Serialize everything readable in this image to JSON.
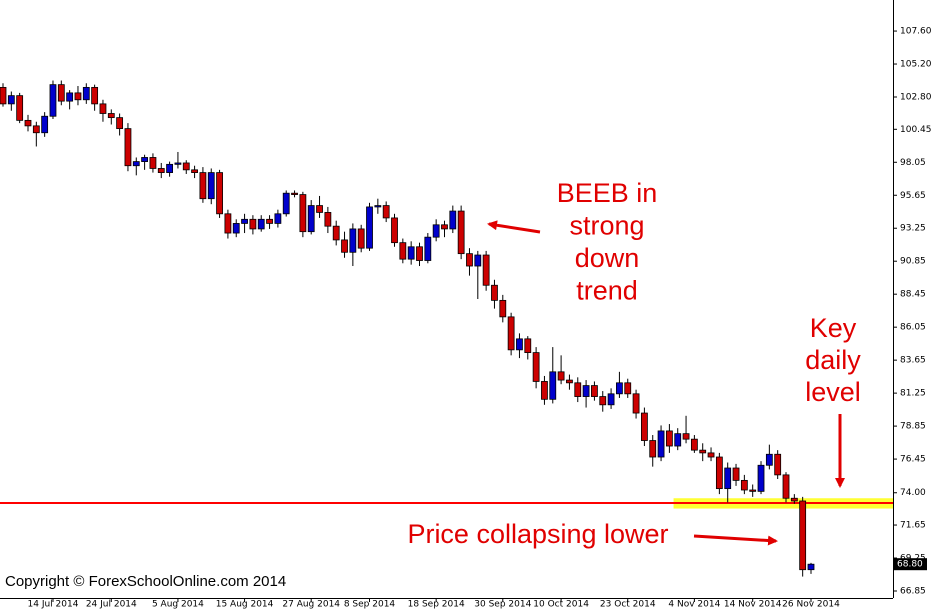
{
  "chart_data": {
    "type": "candlestick",
    "categories": [
      null,
      null,
      null,
      null,
      null,
      null,
      "14 Jul 2014",
      null,
      null,
      null,
      null,
      null,
      null,
      "24 Jul 2014",
      null,
      null,
      null,
      null,
      null,
      null,
      null,
      "5 Aug 2014",
      null,
      null,
      null,
      null,
      null,
      null,
      null,
      "15 Aug 2014",
      null,
      null,
      null,
      null,
      null,
      null,
      null,
      "27 Aug 2014",
      null,
      null,
      null,
      null,
      null,
      null,
      "8 Sep 2014",
      null,
      null,
      null,
      null,
      null,
      null,
      null,
      "18 Sep 2014",
      null,
      null,
      null,
      null,
      null,
      null,
      null,
      "30 Sep 2014",
      null,
      null,
      null,
      null,
      null,
      null,
      "10 Oct 2014",
      null,
      null,
      null,
      null,
      null,
      null,
      null,
      "23 Oct 2014",
      null,
      null,
      null,
      null,
      null,
      null,
      null,
      "4 Nov 2014",
      null,
      null,
      null,
      null,
      null,
      null,
      "14 Nov 2014",
      null,
      null,
      null,
      null,
      null,
      null,
      "26 Nov 2014"
    ],
    "open": [
      103.5,
      102.3,
      102.9,
      101.1,
      100.7,
      100.2,
      101.4,
      103.7,
      102.5,
      103.1,
      102.6,
      103.5,
      102.3,
      101.6,
      101.3,
      100.5,
      97.8,
      98.1,
      98.4,
      97.6,
      97.3,
      97.9,
      98.0,
      97.5,
      97.3,
      95.4,
      97.3,
      94.3,
      92.9,
      93.6,
      93.9,
      93.2,
      93.9,
      93.6,
      94.3,
      95.8,
      95.7,
      93.0,
      94.9,
      94.4,
      93.4,
      92.4,
      91.5,
      93.2,
      91.8,
      94.8,
      94.9,
      94.0,
      92.2,
      91.0,
      91.9,
      90.9,
      92.6,
      93.5,
      93.2,
      94.5,
      91.4,
      90.5,
      91.3,
      89.1,
      88.0,
      86.8,
      84.4,
      85.2,
      84.2,
      82.1,
      80.8,
      82.8,
      82.2,
      82.0,
      81.0,
      81.8,
      81.0,
      80.4,
      81.2,
      82.0,
      81.2,
      79.8,
      77.8,
      76.6,
      78.5,
      77.4,
      78.3,
      77.9,
      77.1,
      76.9,
      76.6,
      74.3,
      75.8,
      74.9,
      74.2,
      74.1,
      76.0,
      76.8,
      75.3,
      73.6,
      73.4,
      68.4
    ],
    "high": [
      103.8,
      103.2,
      103.1,
      101.5,
      101.0,
      101.7,
      104.0,
      104.0,
      103.3,
      103.6,
      103.8,
      103.7,
      102.6,
      101.9,
      101.6,
      100.9,
      98.4,
      98.6,
      98.7,
      98.0,
      98.1,
      98.8,
      98.2,
      97.8,
      97.7,
      97.6,
      97.5,
      94.6,
      93.9,
      94.3,
      94.2,
      94.2,
      94.2,
      94.6,
      96.0,
      96.0,
      95.9,
      95.3,
      95.6,
      94.8,
      93.8,
      93.0,
      93.6,
      93.5,
      95.1,
      95.4,
      95.2,
      94.3,
      92.5,
      92.3,
      92.2,
      92.9,
      93.9,
      93.8,
      94.9,
      94.9,
      91.8,
      91.6,
      91.6,
      89.5,
      88.4,
      87.1,
      85.6,
      85.4,
      84.6,
      82.5,
      84.6,
      84.0,
      82.6,
      82.4,
      82.2,
      82.1,
      81.4,
      81.6,
      82.8,
      82.3,
      81.5,
      80.2,
      78.2,
      78.9,
      79.0,
      78.7,
      79.6,
      78.2,
      77.6,
      77.3,
      76.9,
      76.2,
      76.1,
      75.3,
      74.6,
      76.3,
      77.5,
      77.1,
      75.5,
      73.9,
      73.7,
      68.9
    ],
    "low": [
      102.1,
      101.8,
      100.9,
      100.3,
      99.2,
      99.9,
      101.2,
      102.2,
      101.9,
      102.2,
      102.3,
      101.8,
      101.0,
      100.8,
      100.0,
      97.4,
      97.1,
      97.5,
      97.3,
      96.9,
      97.0,
      97.6,
      97.2,
      96.9,
      95.1,
      95.0,
      94.0,
      92.5,
      92.6,
      92.9,
      92.8,
      93.0,
      93.2,
      93.3,
      94.1,
      95.5,
      92.6,
      92.8,
      94.0,
      92.9,
      92.0,
      91.1,
      90.5,
      91.5,
      91.6,
      94.3,
      93.7,
      91.9,
      90.7,
      90.6,
      90.5,
      90.7,
      92.3,
      92.6,
      92.9,
      91.0,
      89.8,
      88.1,
      88.7,
      87.4,
      86.4,
      84.0,
      83.8,
      83.7,
      81.6,
      80.4,
      80.5,
      81.9,
      81.5,
      80.6,
      80.2,
      80.7,
      79.9,
      80.1,
      80.9,
      80.9,
      79.4,
      77.4,
      75.9,
      76.3,
      76.9,
      77.1,
      77.6,
      76.9,
      76.3,
      76.3,
      73.9,
      73.3,
      74.5,
      73.9,
      73.7,
      73.9,
      75.7,
      75.0,
      73.3,
      73.2,
      67.9,
      68.1
    ],
    "close": [
      102.3,
      102.9,
      101.1,
      100.7,
      100.2,
      101.4,
      103.7,
      102.5,
      103.1,
      102.6,
      103.5,
      102.3,
      101.6,
      101.3,
      100.5,
      97.8,
      98.1,
      98.4,
      97.6,
      97.3,
      97.9,
      98.0,
      97.5,
      97.3,
      95.4,
      97.3,
      94.3,
      92.9,
      93.6,
      93.9,
      93.2,
      93.9,
      93.6,
      94.3,
      95.8,
      95.7,
      93.0,
      94.9,
      94.4,
      93.4,
      92.4,
      91.5,
      93.2,
      91.8,
      94.8,
      94.9,
      94.0,
      92.2,
      91.0,
      91.9,
      90.9,
      92.6,
      93.5,
      93.2,
      94.5,
      91.4,
      90.5,
      91.3,
      89.1,
      88.0,
      86.8,
      84.4,
      85.2,
      84.2,
      82.1,
      80.8,
      82.8,
      82.2,
      82.0,
      81.0,
      81.8,
      81.0,
      80.4,
      81.2,
      82.0,
      81.2,
      79.8,
      77.8,
      76.6,
      78.5,
      77.4,
      78.3,
      77.9,
      77.1,
      76.9,
      76.6,
      74.3,
      75.8,
      74.9,
      74.2,
      74.1,
      76.0,
      76.8,
      75.3,
      73.6,
      73.4,
      68.4,
      68.8
    ],
    "up_color": "#0000cc",
    "down_color": "#cc0000",
    "ylim": [
      66.34,
      109.86
    ],
    "yticks": [
      {
        "value": 107.6,
        "label": "107.60"
      },
      {
        "value": 105.2,
        "label": "105.20"
      },
      {
        "value": 102.8,
        "label": "102.80"
      },
      {
        "value": 100.45,
        "label": "100.45"
      },
      {
        "value": 98.05,
        "label": "98.05"
      },
      {
        "value": 95.65,
        "label": "95.65"
      },
      {
        "value": 93.25,
        "label": "93.25"
      },
      {
        "value": 90.85,
        "label": "90.85"
      },
      {
        "value": 88.45,
        "label": "88.45"
      },
      {
        "value": 86.05,
        "label": "86.05"
      },
      {
        "value": 83.65,
        "label": "83.65"
      },
      {
        "value": 81.25,
        "label": "81.25"
      },
      {
        "value": 78.85,
        "label": "78.85"
      },
      {
        "value": 76.45,
        "label": "76.45"
      },
      {
        "value": 74.0,
        "label": "74.00"
      },
      {
        "value": 71.65,
        "label": "71.65"
      },
      {
        "value": 69.25,
        "label": "69.25"
      },
      {
        "value": 66.85,
        "label": "66.85"
      }
    ],
    "last_price": {
      "value": 68.8,
      "label": "68.80"
    },
    "level_line": {
      "value": 73.25,
      "color": "#ff0000"
    },
    "highlight_zone": {
      "from": 72.85,
      "to": 73.6,
      "start": 81,
      "color": "#ffff33"
    },
    "annotations": [
      {
        "lines": [
          "BEEB in",
          "strong",
          "down",
          "trend"
        ]
      },
      {
        "lines": [
          "Key",
          "daily",
          "level"
        ]
      },
      {
        "lines": [
          "Price collapsing lower"
        ]
      }
    ],
    "copyright": "Copyright © ForexSchoolOnline.com 2014"
  }
}
